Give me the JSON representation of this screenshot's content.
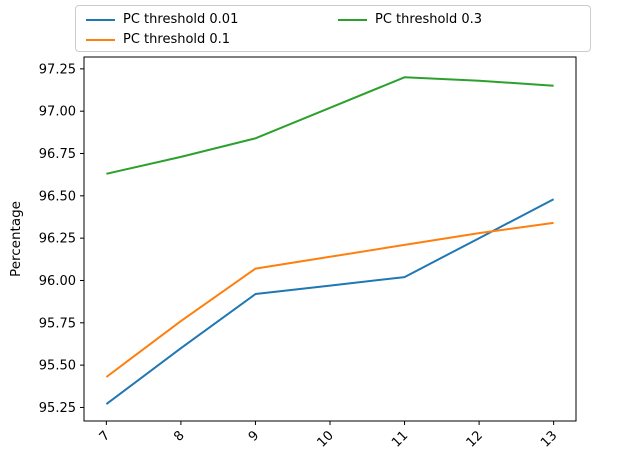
{
  "figure": {
    "background": "#ffffff",
    "axes_color": "#000000",
    "legend_border_color": "#cccccc"
  },
  "chart_data": {
    "type": "line",
    "title": "",
    "xlabel": "",
    "ylabel": "Percentage",
    "x": [
      7,
      8,
      9,
      10,
      11,
      12,
      13
    ],
    "xtick_labels": [
      "7",
      "8",
      "9",
      "10",
      "11",
      "12",
      "13"
    ],
    "xtick_rotation_deg": 45,
    "yticks": [
      95.25,
      95.5,
      95.75,
      96.0,
      96.25,
      96.5,
      96.75,
      97.0,
      97.25
    ],
    "xlim": [
      6.7,
      13.3
    ],
    "ylim": [
      95.17,
      97.32
    ],
    "grid": false,
    "legend_position": "top",
    "legend_columns": 2,
    "series": [
      {
        "name": "PC threshold 0.01",
        "color": "#1f77b4",
        "values": [
          95.27,
          95.6,
          95.92,
          95.97,
          96.02,
          96.25,
          96.48
        ]
      },
      {
        "name": "PC threshold 0.1",
        "color": "#ff7f0e",
        "values": [
          95.43,
          95.76,
          96.07,
          96.14,
          96.21,
          96.28,
          96.34
        ]
      },
      {
        "name": "PC threshold 0.3",
        "color": "#2ca02c",
        "values": [
          96.63,
          96.73,
          96.84,
          97.02,
          97.2,
          97.18,
          97.15
        ]
      }
    ]
  }
}
